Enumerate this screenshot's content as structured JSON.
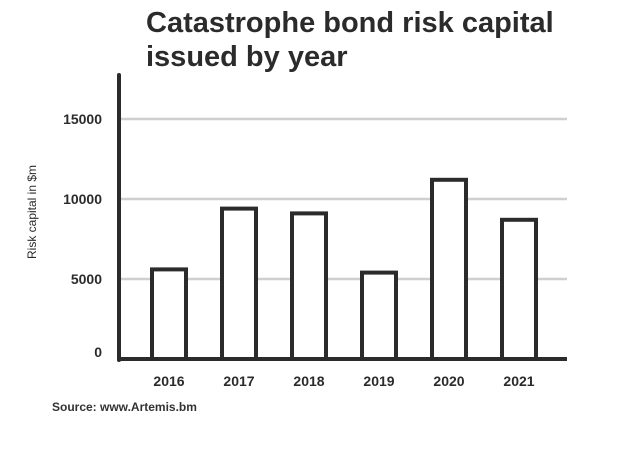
{
  "chart_data": {
    "type": "bar",
    "title": "Catastrophe bond risk capital issued by year",
    "title_lines": [
      "Catastrophe bond risk capital",
      "issued by year"
    ],
    "ylabel": "Risk capital in $m",
    "xlabel": "",
    "categories": [
      "2016",
      "2017",
      "2018",
      "2019",
      "2020",
      "2021"
    ],
    "values": [
      5600,
      9400,
      9100,
      5400,
      11200,
      8700
    ],
    "ylim": [
      0,
      17500
    ],
    "yticks": [
      0,
      5000,
      10000,
      15000
    ],
    "ytick_labels": [
      "0",
      "5000",
      "10000",
      "15000"
    ],
    "grid": true,
    "colors": {
      "bar_fill": "#ffffff",
      "bar_stroke": "#2b2b2b",
      "axis": "#2b2b2b",
      "grid": "#cfcfcf"
    }
  },
  "source": "Source: www.Artemis.bm"
}
